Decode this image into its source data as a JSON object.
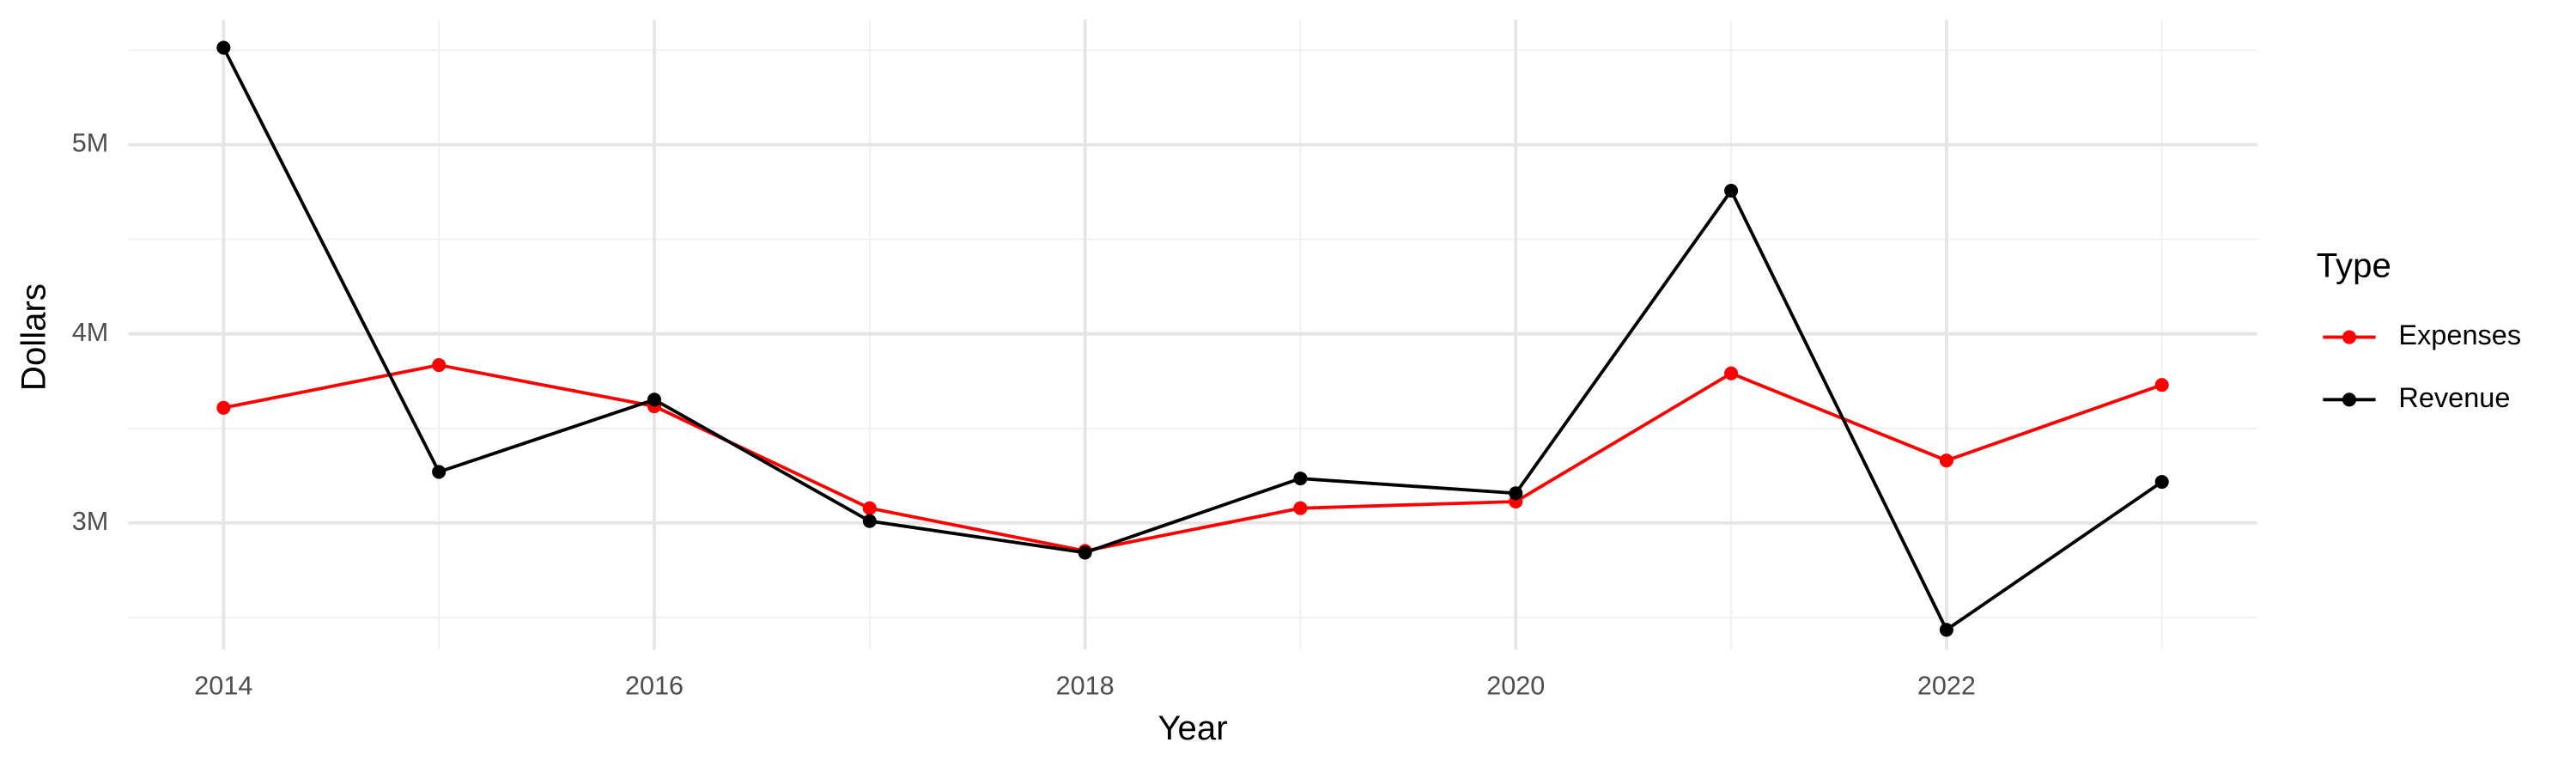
{
  "chart_data": {
    "type": "line",
    "x_label": "Year",
    "y_label": "Dollars",
    "legend_title": "Type",
    "x": [
      2014,
      2015,
      2016,
      2017,
      2018,
      2019,
      2020,
      2021,
      2022,
      2023
    ],
    "series": [
      {
        "name": "Expenses",
        "color": "#ff0000",
        "values": [
          3609000,
          3835000,
          3617000,
          3078000,
          2852000,
          3078000,
          3113000,
          3791000,
          3330000,
          3730000
        ]
      },
      {
        "name": "Revenue",
        "color": "#000000",
        "values": [
          5513000,
          3270000,
          3652000,
          3010000,
          2843000,
          3235000,
          3157000,
          4757000,
          2435000,
          3217000
        ]
      }
    ],
    "xlim": [
      2013.557,
      2023.443
    ],
    "xticks": [
      2014,
      2016,
      2018,
      2020,
      2022
    ],
    "x_minor_ticks": [
      2015,
      2017,
      2019,
      2021,
      2023
    ],
    "ylim": [
      2330000,
      5661000
    ],
    "yticks": [
      {
        "value": 3000000,
        "label": "3M"
      },
      {
        "value": 4000000,
        "label": "4M"
      },
      {
        "value": 5000000,
        "label": "5M"
      }
    ],
    "y_minor_ticks": [
      2500000,
      3500000,
      4500000,
      5500000
    ],
    "grid": true,
    "legend_position": "right"
  }
}
